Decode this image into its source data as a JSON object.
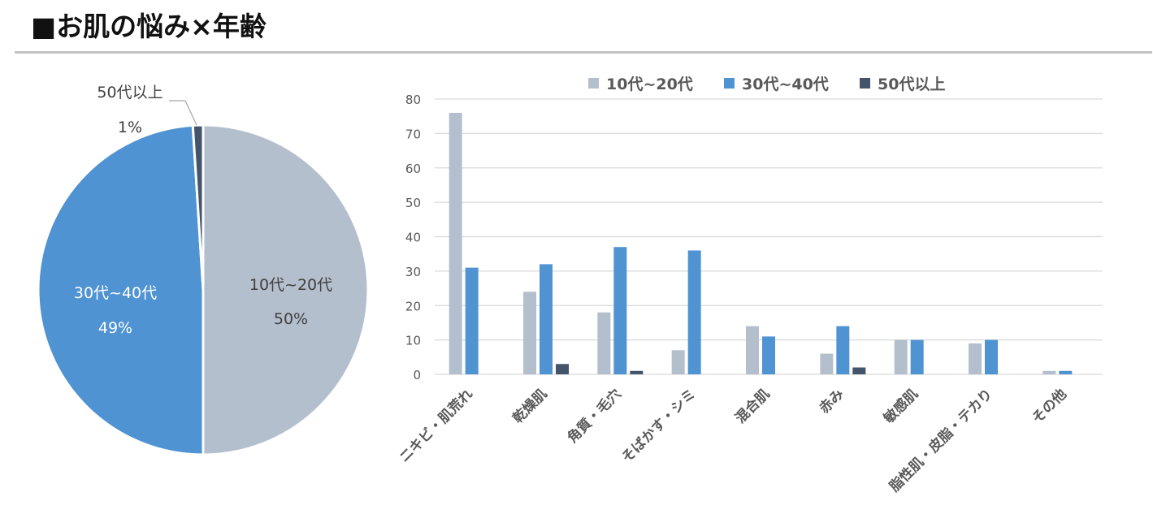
{
  "title": "■お肌の悩み×年齢",
  "colors": {
    "series_light": "#b4bfce",
    "series_mid": "#4f93d2",
    "series_dark": "#44546a",
    "grid": "#d9d9d9",
    "axis_text": "#595959"
  },
  "chart_data": [
    {
      "type": "pie",
      "slices": [
        {
          "label": "10代~20代",
          "value": 50,
          "percent_label": "50%"
        },
        {
          "label": "30代~40代",
          "value": 49,
          "percent_label": "49%"
        },
        {
          "label": "50代以上",
          "value": 1,
          "percent_label": "1%"
        }
      ]
    },
    {
      "type": "bar",
      "legend_position": "top",
      "categories": [
        "ニキビ・肌荒れ",
        "乾燥肌",
        "角質・毛穴",
        "そばかす・シミ",
        "混合肌",
        "赤み",
        "敏感肌",
        "脂性肌・皮脂・テカり",
        "その他"
      ],
      "series": [
        {
          "name": "10代~20代",
          "values": [
            76,
            24,
            18,
            7,
            14,
            6,
            10,
            9,
            1
          ]
        },
        {
          "name": "30代~40代",
          "values": [
            31,
            32,
            37,
            36,
            11,
            14,
            10,
            10,
            1
          ]
        },
        {
          "name": "50代以上",
          "values": [
            0,
            3,
            1,
            0,
            0,
            2,
            0,
            0,
            0
          ]
        }
      ],
      "ylim": [
        0,
        80
      ],
      "yticks": [
        "0",
        "10",
        "20",
        "30",
        "40",
        "50",
        "60",
        "70",
        "80"
      ],
      "grid": true
    }
  ]
}
